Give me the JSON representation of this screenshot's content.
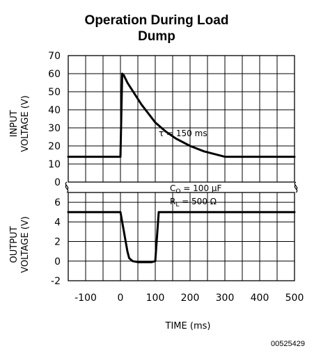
{
  "chart_data": {
    "type": "line",
    "title": "Operation During Load Dump",
    "xlabel": "TIME (ms)",
    "x_ticks": [
      "-100",
      "0",
      "100",
      "200",
      "300",
      "400",
      "500"
    ],
    "xlim": [
      -150,
      500
    ],
    "figure_code": "00525429",
    "panels": [
      {
        "id": "input",
        "ylabel_line1": "INPUT",
        "ylabel_line2": "VOLTAGE (V)",
        "ylim": [
          0,
          70
        ],
        "y_ticks": [
          "0",
          "10",
          "20",
          "30",
          "40",
          "50",
          "60",
          "70"
        ],
        "grid": true,
        "annotation": "τ = 150 ms",
        "x": [
          -150,
          0,
          5,
          10,
          20,
          40,
          60,
          80,
          100,
          130,
          160,
          200,
          240,
          270,
          300,
          350,
          400,
          450,
          500
        ],
        "y": [
          14,
          14,
          60,
          59,
          55,
          49,
          43,
          38,
          33,
          28,
          24,
          20,
          17,
          15.5,
          14,
          14,
          14,
          14,
          14
        ]
      },
      {
        "id": "output",
        "ylabel_line1": "OUTPUT",
        "ylabel_line2": "VOLTAGE (V)",
        "ylim": [
          -2,
          7
        ],
        "y_ticks": [
          "-2",
          "0",
          "2",
          "4",
          "6"
        ],
        "grid": true,
        "annotation_line1": "C",
        "annotation_line1_sub": "O",
        "annotation_line1_rest": " = 100 μF",
        "annotation_line2": "R",
        "annotation_line2_sub": "L",
        "annotation_line2_rest": " = 500 Ω",
        "x": [
          -150,
          0,
          10,
          20,
          25,
          35,
          50,
          70,
          90,
          100,
          110,
          500
        ],
        "y": [
          5,
          5,
          3,
          1,
          0.3,
          0,
          -0.1,
          -0.1,
          -0.1,
          0,
          5,
          5
        ]
      }
    ]
  }
}
